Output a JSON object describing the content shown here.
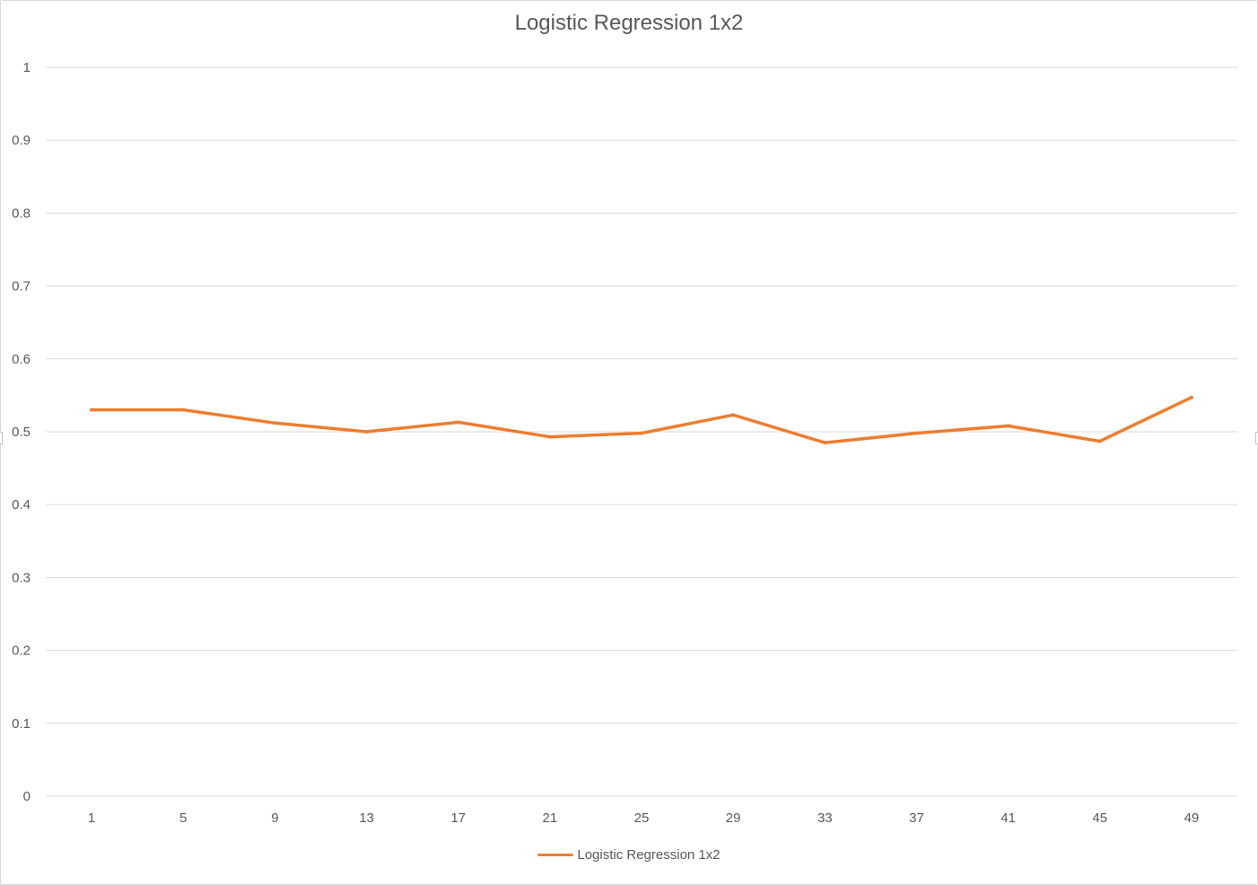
{
  "chart_data": {
    "type": "line",
    "title": "Logistic Regression 1x2",
    "xlabel": "",
    "ylabel": "",
    "ylim": [
      0,
      1
    ],
    "yticks": [
      "0",
      "0.1",
      "0.2",
      "0.3",
      "0.4",
      "0.5",
      "0.6",
      "0.7",
      "0.8",
      "0.9",
      "1"
    ],
    "categories": [
      "1",
      "5",
      "9",
      "13",
      "17",
      "21",
      "25",
      "29",
      "33",
      "37",
      "41",
      "45",
      "49"
    ],
    "series": [
      {
        "name": "Logistic Regression 1x2",
        "color": "#ed7d31",
        "values": [
          0.53,
          0.53,
          0.512,
          0.5,
          0.513,
          0.493,
          0.498,
          0.523,
          0.485,
          0.498,
          0.508,
          0.487,
          0.547
        ]
      }
    ],
    "grid": true,
    "legend_position": "bottom"
  },
  "colors": {
    "grid": "#d9d9d9",
    "text": "#595959"
  }
}
